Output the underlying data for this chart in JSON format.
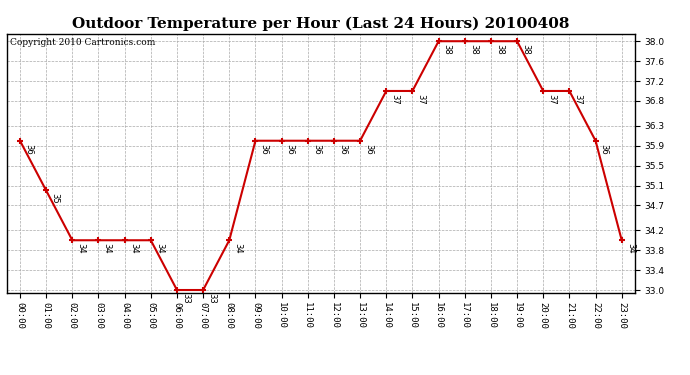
{
  "title": "Outdoor Temperature per Hour (Last 24 Hours) 20100408",
  "copyright": "Copyright 2010 Cartronics.com",
  "hours": [
    "00:00",
    "01:00",
    "02:00",
    "03:00",
    "04:00",
    "05:00",
    "06:00",
    "07:00",
    "08:00",
    "09:00",
    "10:00",
    "11:00",
    "12:00",
    "13:00",
    "14:00",
    "15:00",
    "16:00",
    "17:00",
    "18:00",
    "19:00",
    "20:00",
    "21:00",
    "22:00",
    "23:00"
  ],
  "values": [
    36,
    35,
    34,
    34,
    34,
    34,
    33,
    33,
    34,
    36,
    36,
    36,
    36,
    36,
    37,
    37,
    38,
    38,
    38,
    38,
    37,
    37,
    36,
    34
  ],
  "line_color": "#cc0000",
  "marker_color": "#cc0000",
  "bg_color": "#ffffff",
  "grid_color": "#aaaaaa",
  "ylim_min": 33.0,
  "ylim_max": 38.0,
  "yticks": [
    33.0,
    33.4,
    33.8,
    34.2,
    34.7,
    35.1,
    35.5,
    35.9,
    36.3,
    36.8,
    37.2,
    37.6,
    38.0
  ],
  "title_fontsize": 11,
  "copyright_fontsize": 6.5,
  "label_fontsize": 6,
  "tick_fontsize": 6.5
}
